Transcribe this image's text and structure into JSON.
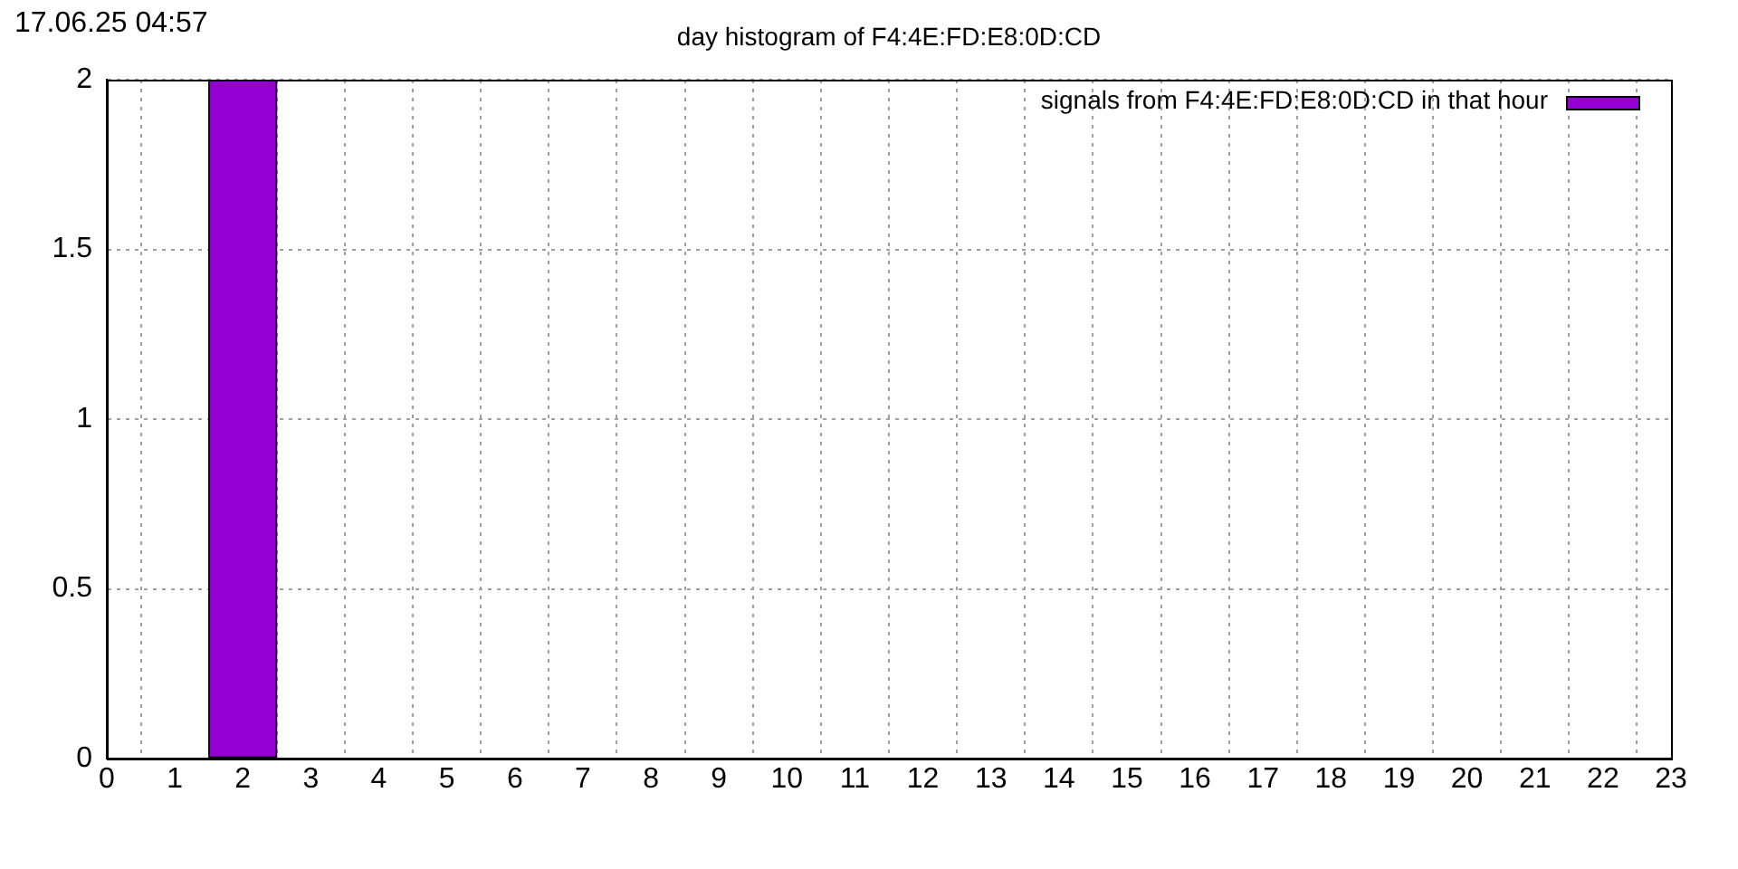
{
  "chart_data": {
    "type": "bar",
    "title": "day histogram of F4:4E:FD:E8:0D:CD",
    "annotations": [
      "17.06.25 04:57"
    ],
    "x": [
      2
    ],
    "series": [
      {
        "name": "signals from F4:4E:FD:E8:0D:CD in that hour",
        "color": "#9400d3",
        "values": [
          2
        ]
      }
    ],
    "xlim": [
      0,
      23
    ],
    "xticks": [
      0,
      1,
      2,
      3,
      4,
      5,
      6,
      7,
      8,
      9,
      10,
      11,
      12,
      13,
      14,
      15,
      16,
      17,
      18,
      19,
      20,
      21,
      22,
      23
    ],
    "ylim": [
      0,
      2
    ],
    "yticks": [
      0,
      0.5,
      1,
      1.5,
      2
    ],
    "grid": true,
    "legend": "top right"
  }
}
